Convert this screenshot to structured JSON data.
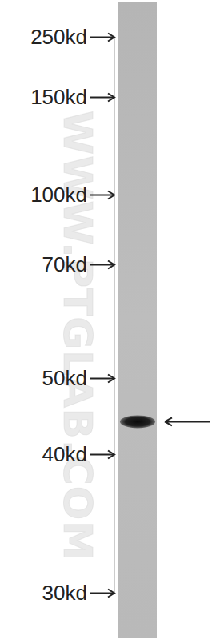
{
  "chart_data": {
    "type": "western_blot",
    "annotations": [
      "WWW.PTGLAB.COM"
    ],
    "values": [
      44
    ],
    "log": "y",
    "ylim": [
      30,
      250
    ],
    "yticks": [
      {
        "value": 250,
        "label": "250kd"
      },
      {
        "value": 150,
        "label": "150kd"
      },
      {
        "value": 100,
        "label": "100kd"
      },
      {
        "value": 70,
        "label": "70kd"
      },
      {
        "value": 50,
        "label": "50kd"
      },
      {
        "value": 40,
        "label": "40kd"
      },
      {
        "value": 30,
        "label": "30kd"
      }
    ]
  }
}
